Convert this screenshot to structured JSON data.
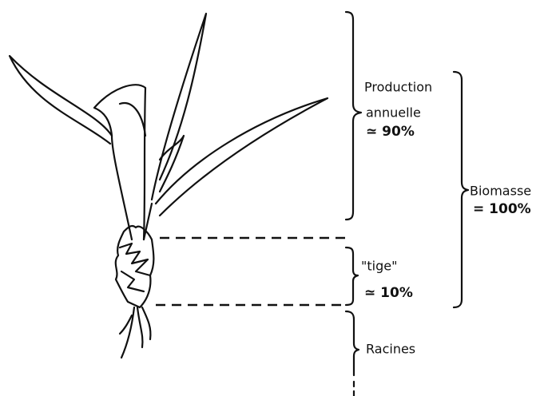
{
  "annual_production": {
    "line1": "Production",
    "line2": "annuelle",
    "share": "≃ 90%"
  },
  "biomass": {
    "label": "Biomasse",
    "share": "= 100%"
  },
  "stem": {
    "label": "\"tige\"",
    "share": "≃ 10%"
  },
  "roots": {
    "label": "Racines"
  }
}
